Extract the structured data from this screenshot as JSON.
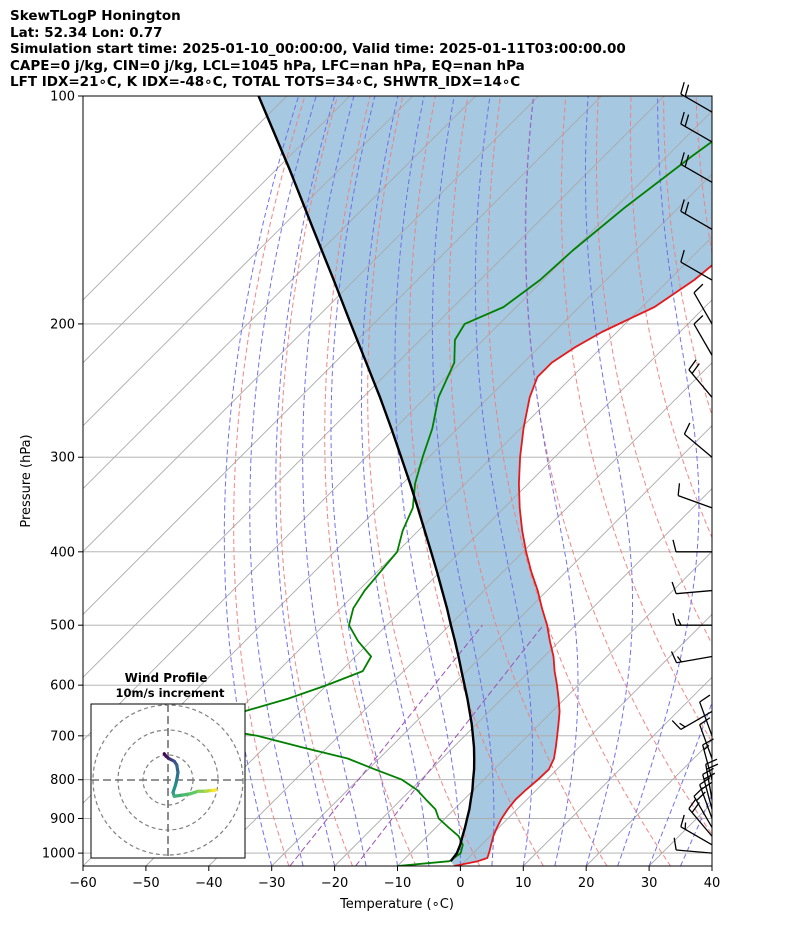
{
  "header": {
    "line1": "SkewTLogP Honington",
    "line2": "Lat: 52.34   Lon: 0.77",
    "line3": "Simulation start time: 2025-01-10_00:00:00, Valid time: 2025-01-11T03:00:00.00",
    "line4": "CAPE=0 j/kg, CIN=0 j/kg, LCL=1045 hPa, LFC=nan hPa, EQ=nan hPa",
    "line5": "LFT IDX=21∘C, K IDX=-48∘C, TOTAL TOTS=34∘C, SHWTR_IDX=14∘C"
  },
  "hodograph": {
    "title": "Wind Profile",
    "subtitle": "10m/s increment"
  },
  "chart_data": {
    "type": "line",
    "xlabel": "Temperature (∘C)",
    "ylabel": "Pressure (hPa)",
    "xlim": [
      -60,
      40
    ],
    "ylim": [
      1040,
      100
    ],
    "yscale": "log",
    "skew": 45,
    "x_ticks": [
      -60,
      -50,
      -40,
      -30,
      -20,
      -10,
      0,
      10,
      20,
      30,
      40
    ],
    "x_tick_labels": [
      "−60",
      "−50",
      "−40",
      "−30",
      "−20",
      "−10",
      "0",
      "10",
      "20",
      "30",
      "40"
    ],
    "y_ticks": [
      1000,
      900,
      800,
      700,
      600,
      500,
      400,
      300,
      200,
      100
    ],
    "y_tick_labels": [
      "1000",
      "900",
      "800",
      "700",
      "600",
      "500",
      "400",
      "300",
      "200",
      "100"
    ],
    "grid": true,
    "colors": {
      "temperature": "#e41a1c",
      "dewpoint": "#008000",
      "parcel": "#000000",
      "shade": "#a6c8e0",
      "isotherm": "#aaaaaa",
      "dry_adiabat": "#f08080",
      "moist_adiabat": "#6a6aee",
      "mixing_ratio": "#9c4fb8"
    },
    "series": [
      {
        "key": "temperature",
        "p": [
          1040,
          1025,
          1015,
          1000,
          975,
          950,
          925,
          900,
          875,
          850,
          825,
          800,
          775,
          750,
          725,
          700,
          675,
          650,
          625,
          600,
          575,
          550,
          525,
          500,
          475,
          450,
          425,
          400,
          375,
          350,
          325,
          300,
          275,
          250,
          235,
          225,
          215,
          205,
          190,
          175,
          160,
          150,
          140,
          130,
          120,
          110,
          100
        ],
        "t": [
          -1,
          2,
          3,
          2.5,
          1.5,
          0.5,
          -0.3,
          -1,
          -1.5,
          -1.8,
          -1.7,
          -1.4,
          -1.3,
          -2.2,
          -3.7,
          -5.3,
          -7,
          -8.8,
          -11,
          -13.4,
          -16,
          -18.5,
          -21.5,
          -24.5,
          -28,
          -31.5,
          -35.5,
          -39.5,
          -43.5,
          -47.5,
          -51.5,
          -55.5,
          -59.5,
          -63.5,
          -65.5,
          -65.5,
          -64.3,
          -62.4,
          -58,
          -56,
          -55,
          -55,
          -55,
          -55,
          -55.5,
          -56,
          -57
        ]
      },
      {
        "key": "dewpoint",
        "p": [
          1040,
          1025,
          1000,
          975,
          950,
          925,
          900,
          875,
          850,
          825,
          800,
          775,
          750,
          725,
          700,
          690,
          680,
          670,
          650,
          625,
          600,
          575,
          550,
          525,
          500,
          475,
          450,
          425,
          400,
          375,
          350,
          325,
          300,
          275,
          250,
          225,
          210,
          200,
          190,
          175,
          160,
          140,
          120,
          100
        ],
        "t": [
          -10,
          -2.5,
          -2,
          -3,
          -5,
          -8,
          -11,
          -13,
          -16,
          -19,
          -23,
          -29,
          -35,
          -44,
          -53,
          -58,
          -60,
          -61,
          -59,
          -54,
          -50,
          -46.5,
          -47.5,
          -52,
          -56,
          -58,
          -59,
          -59.5,
          -60,
          -62.5,
          -64.5,
          -68,
          -71,
          -74,
          -78,
          -81,
          -84.5,
          -85.5,
          -82,
          -80.5,
          -80,
          -78.5,
          -76,
          -72.5
        ]
      },
      {
        "key": "parcel",
        "p": [
          1025,
          1000,
          975,
          950,
          925,
          900,
          875,
          850,
          825,
          800,
          775,
          750,
          725,
          700,
          675,
          650,
          625,
          600,
          575,
          550,
          525,
          500,
          475,
          450,
          425,
          400,
          375,
          350,
          325,
          300,
          275,
          250,
          225,
          200,
          175,
          150,
          125,
          100
        ],
        "t": [
          -2.3,
          -2.6,
          -3.4,
          -4.4,
          -5.4,
          -6.5,
          -7.6,
          -8.9,
          -10.2,
          -11.7,
          -13.2,
          -14.9,
          -16.7,
          -18.7,
          -20.8,
          -23.1,
          -25.5,
          -28.1,
          -30.8,
          -33.6,
          -36.6,
          -39.8,
          -43.1,
          -46.7,
          -50.5,
          -54.6,
          -59,
          -63.7,
          -68.8,
          -74.4,
          -80.5,
          -87.3,
          -95,
          -103.6,
          -113.3,
          -124.6,
          -137.9,
          -154.5
        ]
      }
    ],
    "isotherms": [
      -150,
      -140,
      -130,
      -120,
      -110,
      -100,
      -90,
      -80,
      -70,
      -60,
      -50,
      -40,
      -30,
      -20,
      -10,
      0,
      10,
      20,
      30,
      40
    ],
    "isobars": [
      1000,
      900,
      800,
      700,
      600,
      500,
      400,
      300,
      200,
      100
    ],
    "dry_adiabats": [
      -30,
      -20,
      -10,
      0,
      10,
      20,
      30,
      40,
      50,
      60,
      70,
      80,
      90,
      100,
      110,
      120,
      130,
      140
    ],
    "moist_adiabats": [
      -30,
      -25,
      -20,
      -15,
      -10,
      -5,
      0,
      5,
      10,
      15,
      20,
      25,
      30,
      35,
      40,
      45
    ],
    "mixing_ratio_lines": [
      0.0004,
      0.001
    ],
    "wind_barbs": [
      {
        "p": 1000,
        "dir": 275,
        "speed_kt": 12
      },
      {
        "p": 975,
        "dir": 300,
        "speed_kt": 15
      },
      {
        "p": 950,
        "dir": 320,
        "speed_kt": 20
      },
      {
        "p": 925,
        "dir": 330,
        "speed_kt": 20
      },
      {
        "p": 900,
        "dir": 340,
        "speed_kt": 20
      },
      {
        "p": 875,
        "dir": 345,
        "speed_kt": 20
      },
      {
        "p": 850,
        "dir": 350,
        "speed_kt": 20
      },
      {
        "p": 800,
        "dir": 345,
        "speed_kt": 15
      },
      {
        "p": 750,
        "dir": 340,
        "speed_kt": 10
      },
      {
        "p": 700,
        "dir": 340,
        "speed_kt": 10
      },
      {
        "p": 650,
        "dir": 240,
        "speed_kt": 15
      },
      {
        "p": 550,
        "dir": 260,
        "speed_kt": 15
      },
      {
        "p": 500,
        "dir": 270,
        "speed_kt": 15
      },
      {
        "p": 450,
        "dir": 265,
        "speed_kt": 10
      },
      {
        "p": 400,
        "dir": 270,
        "speed_kt": 10
      },
      {
        "p": 350,
        "dir": 290,
        "speed_kt": 10
      },
      {
        "p": 300,
        "dir": 310,
        "speed_kt": 10
      },
      {
        "p": 250,
        "dir": 320,
        "speed_kt": 20
      },
      {
        "p": 220,
        "dir": 330,
        "speed_kt": 10
      },
      {
        "p": 200,
        "dir": 330,
        "speed_kt": 10
      },
      {
        "p": 175,
        "dir": 300,
        "speed_kt": 10
      },
      {
        "p": 150,
        "dir": 300,
        "speed_kt": 20
      },
      {
        "p": 130,
        "dir": 300,
        "speed_kt": 20
      },
      {
        "p": 115,
        "dir": 300,
        "speed_kt": 20
      },
      {
        "p": 105,
        "dir": 300,
        "speed_kt": 20
      }
    ],
    "hodograph": {
      "rings_ms": [
        10,
        20,
        30
      ],
      "u_ms": [
        -1.5,
        -0.8,
        0.5,
        1.5,
        2.5,
        3.5,
        4,
        3.5,
        3,
        2,
        2.5,
        6,
        9,
        12,
        15,
        17,
        18,
        19
      ],
      "v_ms": [
        10.5,
        9.5,
        8.5,
        8,
        7.5,
        6,
        3,
        0,
        -2,
        -5,
        -6.5,
        -6,
        -5.5,
        -4.5,
        -4.5,
        -4.2,
        -4.2,
        -4
      ]
    }
  }
}
